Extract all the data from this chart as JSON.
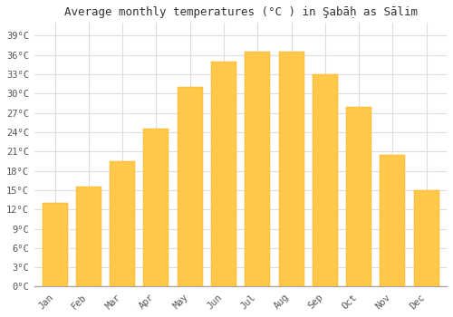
{
  "title": "Average monthly temperatures (°C ) in Şabāḥ as Sālim",
  "months": [
    "Jan",
    "Feb",
    "Mar",
    "Apr",
    "May",
    "Jun",
    "Jul",
    "Aug",
    "Sep",
    "Oct",
    "Nov",
    "Dec"
  ],
  "temperatures": [
    13,
    15.5,
    19.5,
    24.5,
    31,
    35,
    36.5,
    36.5,
    33,
    28,
    20.5,
    15
  ],
  "bar_color_light": "#FFC84A",
  "bar_color_dark": "#FFA500",
  "background_color": "#FFFFFF",
  "grid_color": "#DDDDDD",
  "yticks": [
    0,
    3,
    6,
    9,
    12,
    15,
    18,
    21,
    24,
    27,
    30,
    33,
    36,
    39
  ],
  "ylim": [
    0,
    41
  ],
  "title_fontsize": 9,
  "tick_fontsize": 7.5,
  "font_family": "monospace",
  "bar_width": 0.75
}
